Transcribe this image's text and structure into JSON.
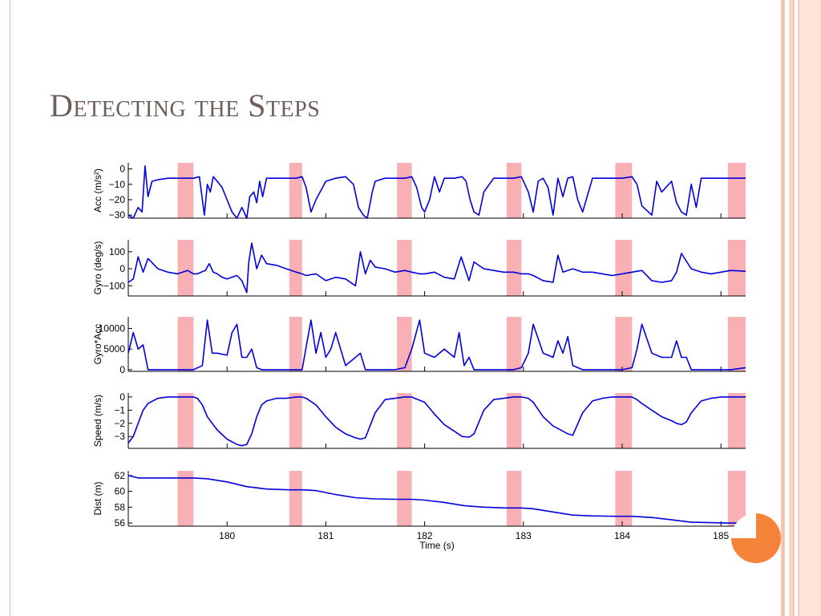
{
  "slide": {
    "title": "Detecting the Steps",
    "accent_color": "#f5843a",
    "border_color": "#f4b9a4"
  },
  "chart_data": {
    "type": "line",
    "x_axis": {
      "label": "Time (s)",
      "range": [
        179.0,
        185.25
      ],
      "ticks": [
        180,
        181,
        182,
        183,
        184,
        185
      ]
    },
    "series_color": "#0000dd",
    "stance_highlight_color": "#f9b0b4",
    "stance_intervals": [
      [
        179.5,
        179.66
      ],
      [
        180.63,
        180.76
      ],
      [
        181.72,
        181.87
      ],
      [
        182.83,
        182.98
      ],
      [
        183.93,
        184.1
      ],
      [
        185.07,
        185.25
      ]
    ],
    "panels": [
      {
        "name": "acc",
        "ylabel": "Acc (m/s²)",
        "ylim": [
          -32,
          4
        ],
        "yticks": [
          0,
          -10,
          -20,
          -30
        ],
        "series": {
          "x": [
            179.0,
            179.05,
            179.1,
            179.14,
            179.17,
            179.2,
            179.24,
            179.3,
            179.4,
            179.5,
            179.6,
            179.66,
            179.72,
            179.77,
            179.8,
            179.83,
            179.86,
            179.9,
            179.95,
            180.0,
            180.05,
            180.1,
            180.15,
            180.2,
            180.23,
            180.27,
            180.3,
            180.33,
            180.36,
            180.4,
            180.5,
            180.6,
            180.7,
            180.76,
            180.8,
            180.85,
            180.9,
            181.0,
            181.1,
            181.2,
            181.28,
            181.33,
            181.38,
            181.42,
            181.47,
            181.5,
            181.6,
            181.7,
            181.8,
            181.87,
            181.92,
            181.97,
            182.0,
            182.05,
            182.1,
            182.15,
            182.2,
            182.3,
            182.38,
            182.42,
            182.46,
            182.5,
            182.55,
            182.6,
            182.7,
            182.8,
            182.9,
            182.98,
            183.05,
            183.1,
            183.15,
            183.2,
            183.25,
            183.3,
            183.35,
            183.4,
            183.45,
            183.5,
            183.55,
            183.6,
            183.7,
            183.8,
            183.9,
            184.0,
            184.1,
            184.15,
            184.2,
            184.3,
            184.35,
            184.4,
            184.5,
            184.55,
            184.6,
            184.65,
            184.7,
            184.75,
            184.8,
            184.9,
            185.0,
            185.1,
            185.2,
            185.25
          ],
          "y": [
            -30,
            -33,
            -25,
            -28,
            2,
            -18,
            -8,
            -7,
            -6,
            -6,
            -6,
            -6,
            -5,
            -30,
            -10,
            -15,
            -5,
            -8,
            -12,
            -20,
            -28,
            -33,
            -25,
            -35,
            -18,
            -15,
            -22,
            -8,
            -18,
            -6,
            -6,
            -6,
            -6,
            -5,
            -12,
            -28,
            -20,
            -8,
            -6,
            -5,
            -10,
            -25,
            -30,
            -32,
            -15,
            -8,
            -6,
            -6,
            -6,
            -5,
            -12,
            -25,
            -28,
            -20,
            -5,
            -15,
            -6,
            -6,
            -5,
            -8,
            -20,
            -28,
            -30,
            -15,
            -6,
            -6,
            -6,
            -5,
            -15,
            -28,
            -8,
            -6,
            -12,
            -30,
            -6,
            -18,
            -6,
            -5,
            -20,
            -28,
            -6,
            -6,
            -6,
            -6,
            -5,
            -10,
            -24,
            -30,
            -8,
            -15,
            -8,
            -22,
            -28,
            -30,
            -10,
            -25,
            -6,
            -6,
            -6,
            -6,
            -6,
            -6
          ]
        }
      },
      {
        "name": "gyro",
        "ylabel": "Gyro (deg/s)",
        "ylim": [
          -160,
          170
        ],
        "yticks": [
          100,
          0,
          -100
        ],
        "series": {
          "x": [
            179.0,
            179.05,
            179.1,
            179.15,
            179.2,
            179.3,
            179.4,
            179.5,
            179.6,
            179.66,
            179.7,
            179.78,
            179.82,
            179.86,
            179.9,
            179.95,
            180.0,
            180.1,
            180.15,
            180.2,
            180.22,
            180.25,
            180.3,
            180.35,
            180.4,
            180.5,
            180.6,
            180.7,
            180.76,
            180.8,
            180.9,
            181.0,
            181.1,
            181.2,
            181.3,
            181.35,
            181.4,
            181.45,
            181.5,
            181.6,
            181.7,
            181.8,
            181.87,
            181.95,
            182.0,
            182.1,
            182.2,
            182.3,
            182.37,
            182.45,
            182.5,
            182.6,
            182.7,
            182.8,
            182.9,
            182.98,
            183.05,
            183.1,
            183.2,
            183.3,
            183.35,
            183.4,
            183.5,
            183.6,
            183.7,
            183.8,
            183.9,
            184.0,
            184.1,
            184.2,
            184.3,
            184.4,
            184.5,
            184.55,
            184.6,
            184.7,
            184.8,
            184.9,
            185.0,
            185.1,
            185.25
          ],
          "y": [
            -80,
            -60,
            70,
            -20,
            60,
            0,
            -20,
            -30,
            -10,
            -30,
            -30,
            -10,
            30,
            -20,
            -30,
            -50,
            -60,
            -40,
            -70,
            -140,
            40,
            150,
            0,
            80,
            30,
            20,
            0,
            -20,
            -30,
            -40,
            -30,
            -70,
            -50,
            -60,
            -100,
            100,
            -30,
            50,
            10,
            0,
            -20,
            -10,
            -20,
            -30,
            -30,
            -20,
            -50,
            -60,
            70,
            -70,
            40,
            0,
            -10,
            -20,
            -20,
            -30,
            -30,
            -40,
            -70,
            -80,
            80,
            -20,
            0,
            -20,
            -20,
            -30,
            -40,
            -30,
            -20,
            -10,
            -70,
            -80,
            -70,
            -20,
            90,
            0,
            -20,
            -30,
            -20,
            -10,
            -15
          ]
        }
      },
      {
        "name": "gyro-acc",
        "ylabel": "Gyro*Acc",
        "ylim": [
          -400,
          12800
        ],
        "yticks": [
          10000,
          5000,
          0
        ],
        "series": {
          "x": [
            179.0,
            179.05,
            179.1,
            179.15,
            179.2,
            179.3,
            179.4,
            179.5,
            179.6,
            179.66,
            179.75,
            179.8,
            179.85,
            179.9,
            180.0,
            180.05,
            180.1,
            180.15,
            180.2,
            180.25,
            180.3,
            180.35,
            180.4,
            180.5,
            180.6,
            180.7,
            180.76,
            180.85,
            180.9,
            180.95,
            181.0,
            181.05,
            181.1,
            181.2,
            181.3,
            181.35,
            181.4,
            181.45,
            181.5,
            181.6,
            181.7,
            181.8,
            181.87,
            181.95,
            182.0,
            182.1,
            182.2,
            182.3,
            182.35,
            182.4,
            182.45,
            182.5,
            182.6,
            182.7,
            182.8,
            182.9,
            182.98,
            183.05,
            183.1,
            183.2,
            183.3,
            183.35,
            183.4,
            183.45,
            183.5,
            183.6,
            183.7,
            183.8,
            183.9,
            184.0,
            184.1,
            184.15,
            184.2,
            184.3,
            184.4,
            184.5,
            184.55,
            184.6,
            184.65,
            184.7,
            184.8,
            184.9,
            185.0,
            185.1,
            185.25
          ],
          "y": [
            4000,
            9000,
            5000,
            6000,
            0,
            0,
            0,
            0,
            0,
            0,
            1000,
            12000,
            4000,
            4000,
            3500,
            9000,
            11000,
            3000,
            3000,
            5000,
            500,
            0,
            0,
            0,
            0,
            0,
            0,
            12000,
            4000,
            9000,
            3000,
            5000,
            9000,
            1000,
            3000,
            4000,
            0,
            0,
            0,
            0,
            0,
            500,
            5000,
            12000,
            4000,
            3000,
            5000,
            3000,
            9000,
            1000,
            3000,
            0,
            0,
            0,
            0,
            0,
            500,
            4000,
            11000,
            4000,
            3000,
            7000,
            4000,
            8000,
            1000,
            0,
            0,
            0,
            0,
            0,
            500,
            5000,
            11000,
            4000,
            3000,
            3000,
            7000,
            3000,
            3000,
            0,
            0,
            0,
            0,
            0,
            500
          ]
        }
      },
      {
        "name": "speed",
        "ylabel": "Speed (m/s)",
        "ylim": [
          -3.9,
          0.3
        ],
        "yticks": [
          0,
          -1,
          -2,
          -3
        ],
        "series": {
          "x": [
            179.0,
            179.05,
            179.1,
            179.15,
            179.2,
            179.3,
            179.4,
            179.5,
            179.6,
            179.66,
            179.7,
            179.75,
            179.8,
            179.9,
            180.0,
            180.1,
            180.15,
            180.2,
            180.25,
            180.3,
            180.35,
            180.4,
            180.5,
            180.6,
            180.7,
            180.76,
            180.8,
            180.9,
            181.0,
            181.1,
            181.2,
            181.3,
            181.35,
            181.4,
            181.5,
            181.6,
            181.7,
            181.8,
            181.87,
            181.9,
            182.0,
            182.1,
            182.2,
            182.3,
            182.38,
            182.45,
            182.5,
            182.6,
            182.7,
            182.8,
            182.9,
            182.98,
            183.05,
            183.1,
            183.2,
            183.3,
            183.4,
            183.45,
            183.5,
            183.6,
            183.7,
            183.8,
            183.9,
            184.0,
            184.1,
            184.15,
            184.2,
            184.3,
            184.4,
            184.5,
            184.55,
            184.6,
            184.65,
            184.7,
            184.8,
            184.9,
            185.0,
            185.1,
            185.25
          ],
          "y": [
            -3.5,
            -3,
            -2,
            -1,
            -0.5,
            -0.1,
            0,
            0,
            0,
            0,
            -0.1,
            -0.6,
            -1.5,
            -2.5,
            -3.2,
            -3.6,
            -3.7,
            -3.6,
            -2.8,
            -1.5,
            -0.6,
            -0.3,
            -0.1,
            -0.1,
            0,
            0,
            -0.1,
            -0.6,
            -1.5,
            -2.3,
            -2.8,
            -3.1,
            -3.2,
            -3.1,
            -1.2,
            -0.2,
            -0.1,
            0,
            0,
            -0.1,
            -0.4,
            -1.3,
            -2.1,
            -2.6,
            -3,
            -3.05,
            -2.8,
            -1,
            -0.2,
            -0.1,
            0,
            0,
            -0.1,
            -0.4,
            -1.5,
            -2.2,
            -2.6,
            -2.8,
            -2.9,
            -1.2,
            -0.3,
            -0.1,
            0,
            0,
            0,
            -0.2,
            -0.5,
            -1,
            -1.5,
            -1.8,
            -2,
            -2.1,
            -1.9,
            -1.2,
            -0.3,
            -0.1,
            0,
            0,
            0
          ]
        }
      },
      {
        "name": "dist",
        "ylabel": "Dist (m)",
        "ylim": [
          55.6,
          62.6
        ],
        "yticks": [
          62,
          60,
          58,
          56
        ],
        "series": {
          "x": [
            179.0,
            179.1,
            179.5,
            179.66,
            179.8,
            180.0,
            180.2,
            180.4,
            180.63,
            180.76,
            180.9,
            181.1,
            181.3,
            181.5,
            181.72,
            181.87,
            182.0,
            182.2,
            182.4,
            182.6,
            182.83,
            182.98,
            183.1,
            183.3,
            183.5,
            183.7,
            183.93,
            184.1,
            184.3,
            184.5,
            184.7,
            184.9,
            185.07,
            185.25
          ],
          "y": [
            62,
            61.7,
            61.7,
            61.7,
            61.6,
            61.2,
            60.6,
            60.3,
            60.2,
            60.2,
            60.1,
            59.6,
            59.2,
            59.05,
            59,
            59,
            58.9,
            58.6,
            58.2,
            58,
            57.9,
            57.9,
            57.8,
            57.4,
            57,
            56.9,
            56.85,
            56.85,
            56.7,
            56.4,
            56.1,
            56.05,
            56,
            56
          ]
        }
      }
    ]
  }
}
